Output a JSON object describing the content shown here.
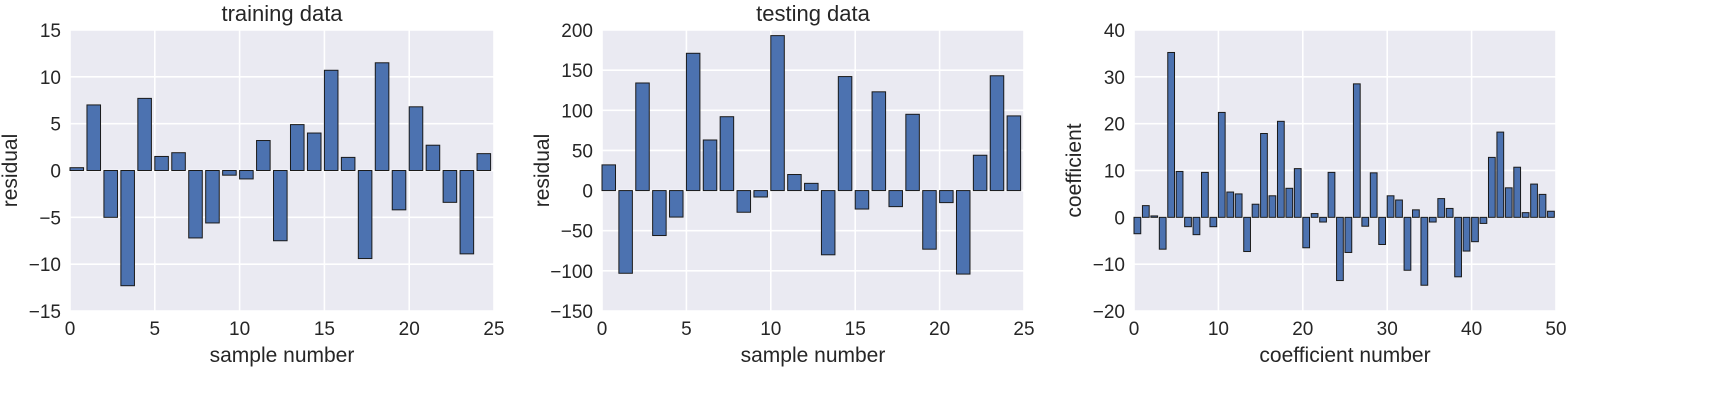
{
  "chart_data": [
    {
      "type": "bar",
      "title": "training data",
      "xlabel": "sample number",
      "ylabel": "residual",
      "xlim": [
        0,
        25
      ],
      "ylim": [
        -15,
        15
      ],
      "xticks": [
        0,
        5,
        10,
        15,
        20,
        25
      ],
      "yticks": [
        -15,
        -10,
        -5,
        0,
        5,
        10,
        15
      ],
      "grid": true,
      "x": [
        0,
        1,
        2,
        3,
        4,
        5,
        6,
        7,
        8,
        9,
        10,
        11,
        12,
        13,
        14,
        15,
        16,
        17,
        18,
        19,
        20,
        21,
        22,
        23,
        24
      ],
      "values": [
        0.3,
        7.0,
        -5.0,
        -12.3,
        7.7,
        1.5,
        1.9,
        -7.2,
        -5.6,
        -0.5,
        -0.9,
        3.2,
        -7.5,
        4.9,
        4.0,
        10.7,
        1.4,
        -9.4,
        11.5,
        -4.2,
        6.8,
        2.7,
        -3.4,
        -8.9,
        1.8
      ]
    },
    {
      "type": "bar",
      "title": "testing data",
      "xlabel": "sample number",
      "ylabel": "residual",
      "xlim": [
        0,
        25
      ],
      "ylim": [
        -150,
        200
      ],
      "xticks": [
        0,
        5,
        10,
        15,
        20,
        25
      ],
      "yticks": [
        -150,
        -100,
        -50,
        0,
        50,
        100,
        150,
        200
      ],
      "grid": true,
      "x": [
        0,
        1,
        2,
        3,
        4,
        5,
        6,
        7,
        8,
        9,
        10,
        11,
        12,
        13,
        14,
        15,
        16,
        17,
        18,
        19,
        20,
        21,
        22,
        23,
        24
      ],
      "values": [
        32,
        -103,
        134,
        -56,
        -33,
        171,
        63,
        92,
        -27,
        -8,
        193,
        20,
        9,
        -80,
        142,
        -23,
        123,
        -20,
        95,
        -73,
        -15,
        -104,
        44,
        143,
        93
      ]
    },
    {
      "type": "bar",
      "title": "",
      "xlabel": "coefficient number",
      "ylabel": "coefficient",
      "xlim": [
        0,
        50
      ],
      "ylim": [
        -20,
        40
      ],
      "xticks": [
        0,
        10,
        20,
        30,
        40,
        50
      ],
      "yticks": [
        -20,
        -10,
        0,
        10,
        20,
        30,
        40
      ],
      "grid": true,
      "x": [
        0,
        1,
        2,
        3,
        4,
        5,
        6,
        7,
        8,
        9,
        10,
        11,
        12,
        13,
        14,
        15,
        16,
        17,
        18,
        19,
        20,
        21,
        22,
        23,
        24,
        25,
        26,
        27,
        28,
        29,
        30,
        31,
        32,
        33,
        34,
        35,
        36,
        37,
        38,
        39,
        40,
        41,
        42,
        43,
        44,
        45,
        46,
        47,
        48,
        49
      ],
      "values": [
        -3.5,
        2.5,
        0.3,
        -6.8,
        35.2,
        9.8,
        -2.0,
        -3.7,
        9.6,
        -2.0,
        22.4,
        5.4,
        5.0,
        -7.3,
        2.8,
        17.9,
        4.6,
        20.5,
        6.2,
        10.4,
        -6.5,
        0.8,
        -1.0,
        9.6,
        -13.5,
        -7.5,
        28.5,
        -1.9,
        9.5,
        -5.8,
        4.6,
        3.7,
        -11.3,
        1.6,
        -14.5,
        -1.0,
        4.0,
        1.9,
        -12.7,
        -7.2,
        -5.2,
        -1.3,
        12.8,
        18.2,
        6.3,
        10.7,
        1.0,
        7.1,
        4.9,
        1.3
      ]
    }
  ]
}
